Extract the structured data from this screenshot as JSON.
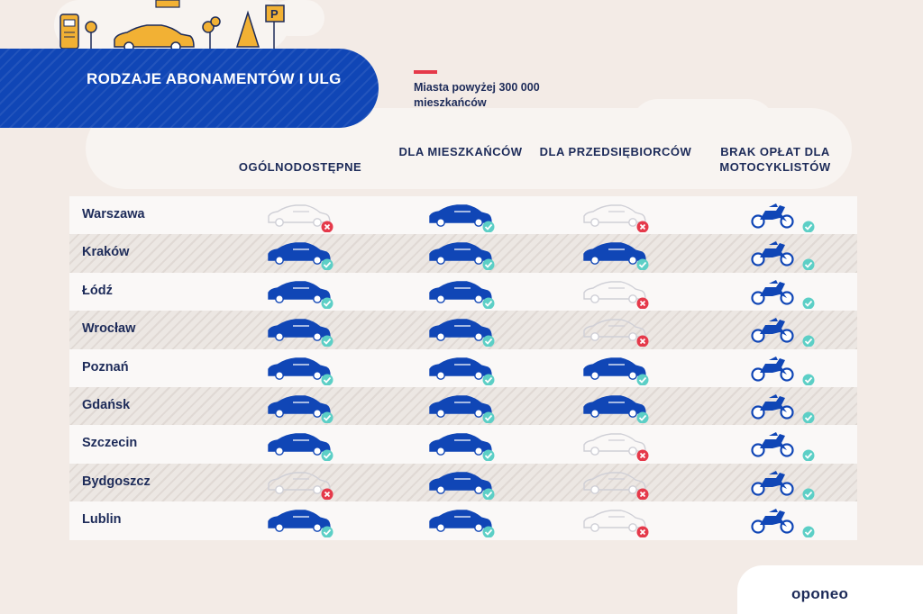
{
  "title": "RODZAJE ABONAMENTÓW I ULG",
  "legend": "Miasta powyżej 300 000 mieszkańców",
  "columns": [
    {
      "label": "OGÓLNODOSTĘPNE",
      "vehicle": "car-icon"
    },
    {
      "label": "DLA MIESZKAŃCÓW",
      "vehicle": "car-icon"
    },
    {
      "label": "DLA PRZEDSIĘBIORCÓW",
      "vehicle": "car-icon"
    },
    {
      "label": "BRAK OPŁAT DLA MOTOCYKLISTÓW",
      "vehicle": "motorcycle-icon"
    }
  ],
  "rows": [
    {
      "city": "Warszawa",
      "values": [
        false,
        true,
        false,
        true
      ]
    },
    {
      "city": "Kraków",
      "values": [
        true,
        true,
        true,
        true
      ]
    },
    {
      "city": "Łódź",
      "values": [
        true,
        true,
        false,
        true
      ]
    },
    {
      "city": "Wrocław",
      "values": [
        true,
        true,
        false,
        true
      ]
    },
    {
      "city": "Poznań",
      "values": [
        true,
        true,
        true,
        true
      ]
    },
    {
      "city": "Gdańsk",
      "values": [
        true,
        true,
        true,
        true
      ]
    },
    {
      "city": "Szczecin",
      "values": [
        true,
        true,
        false,
        true
      ]
    },
    {
      "city": "Bydgoszcz",
      "values": [
        false,
        true,
        false,
        true
      ]
    },
    {
      "city": "Lublin",
      "values": [
        true,
        true,
        false,
        true
      ]
    }
  ],
  "colors": {
    "active": "#1046b6",
    "inactive": "#cfcfd6",
    "yes": "#5ccfc6",
    "no": "#e5394a"
  },
  "logo": "oponeo"
}
